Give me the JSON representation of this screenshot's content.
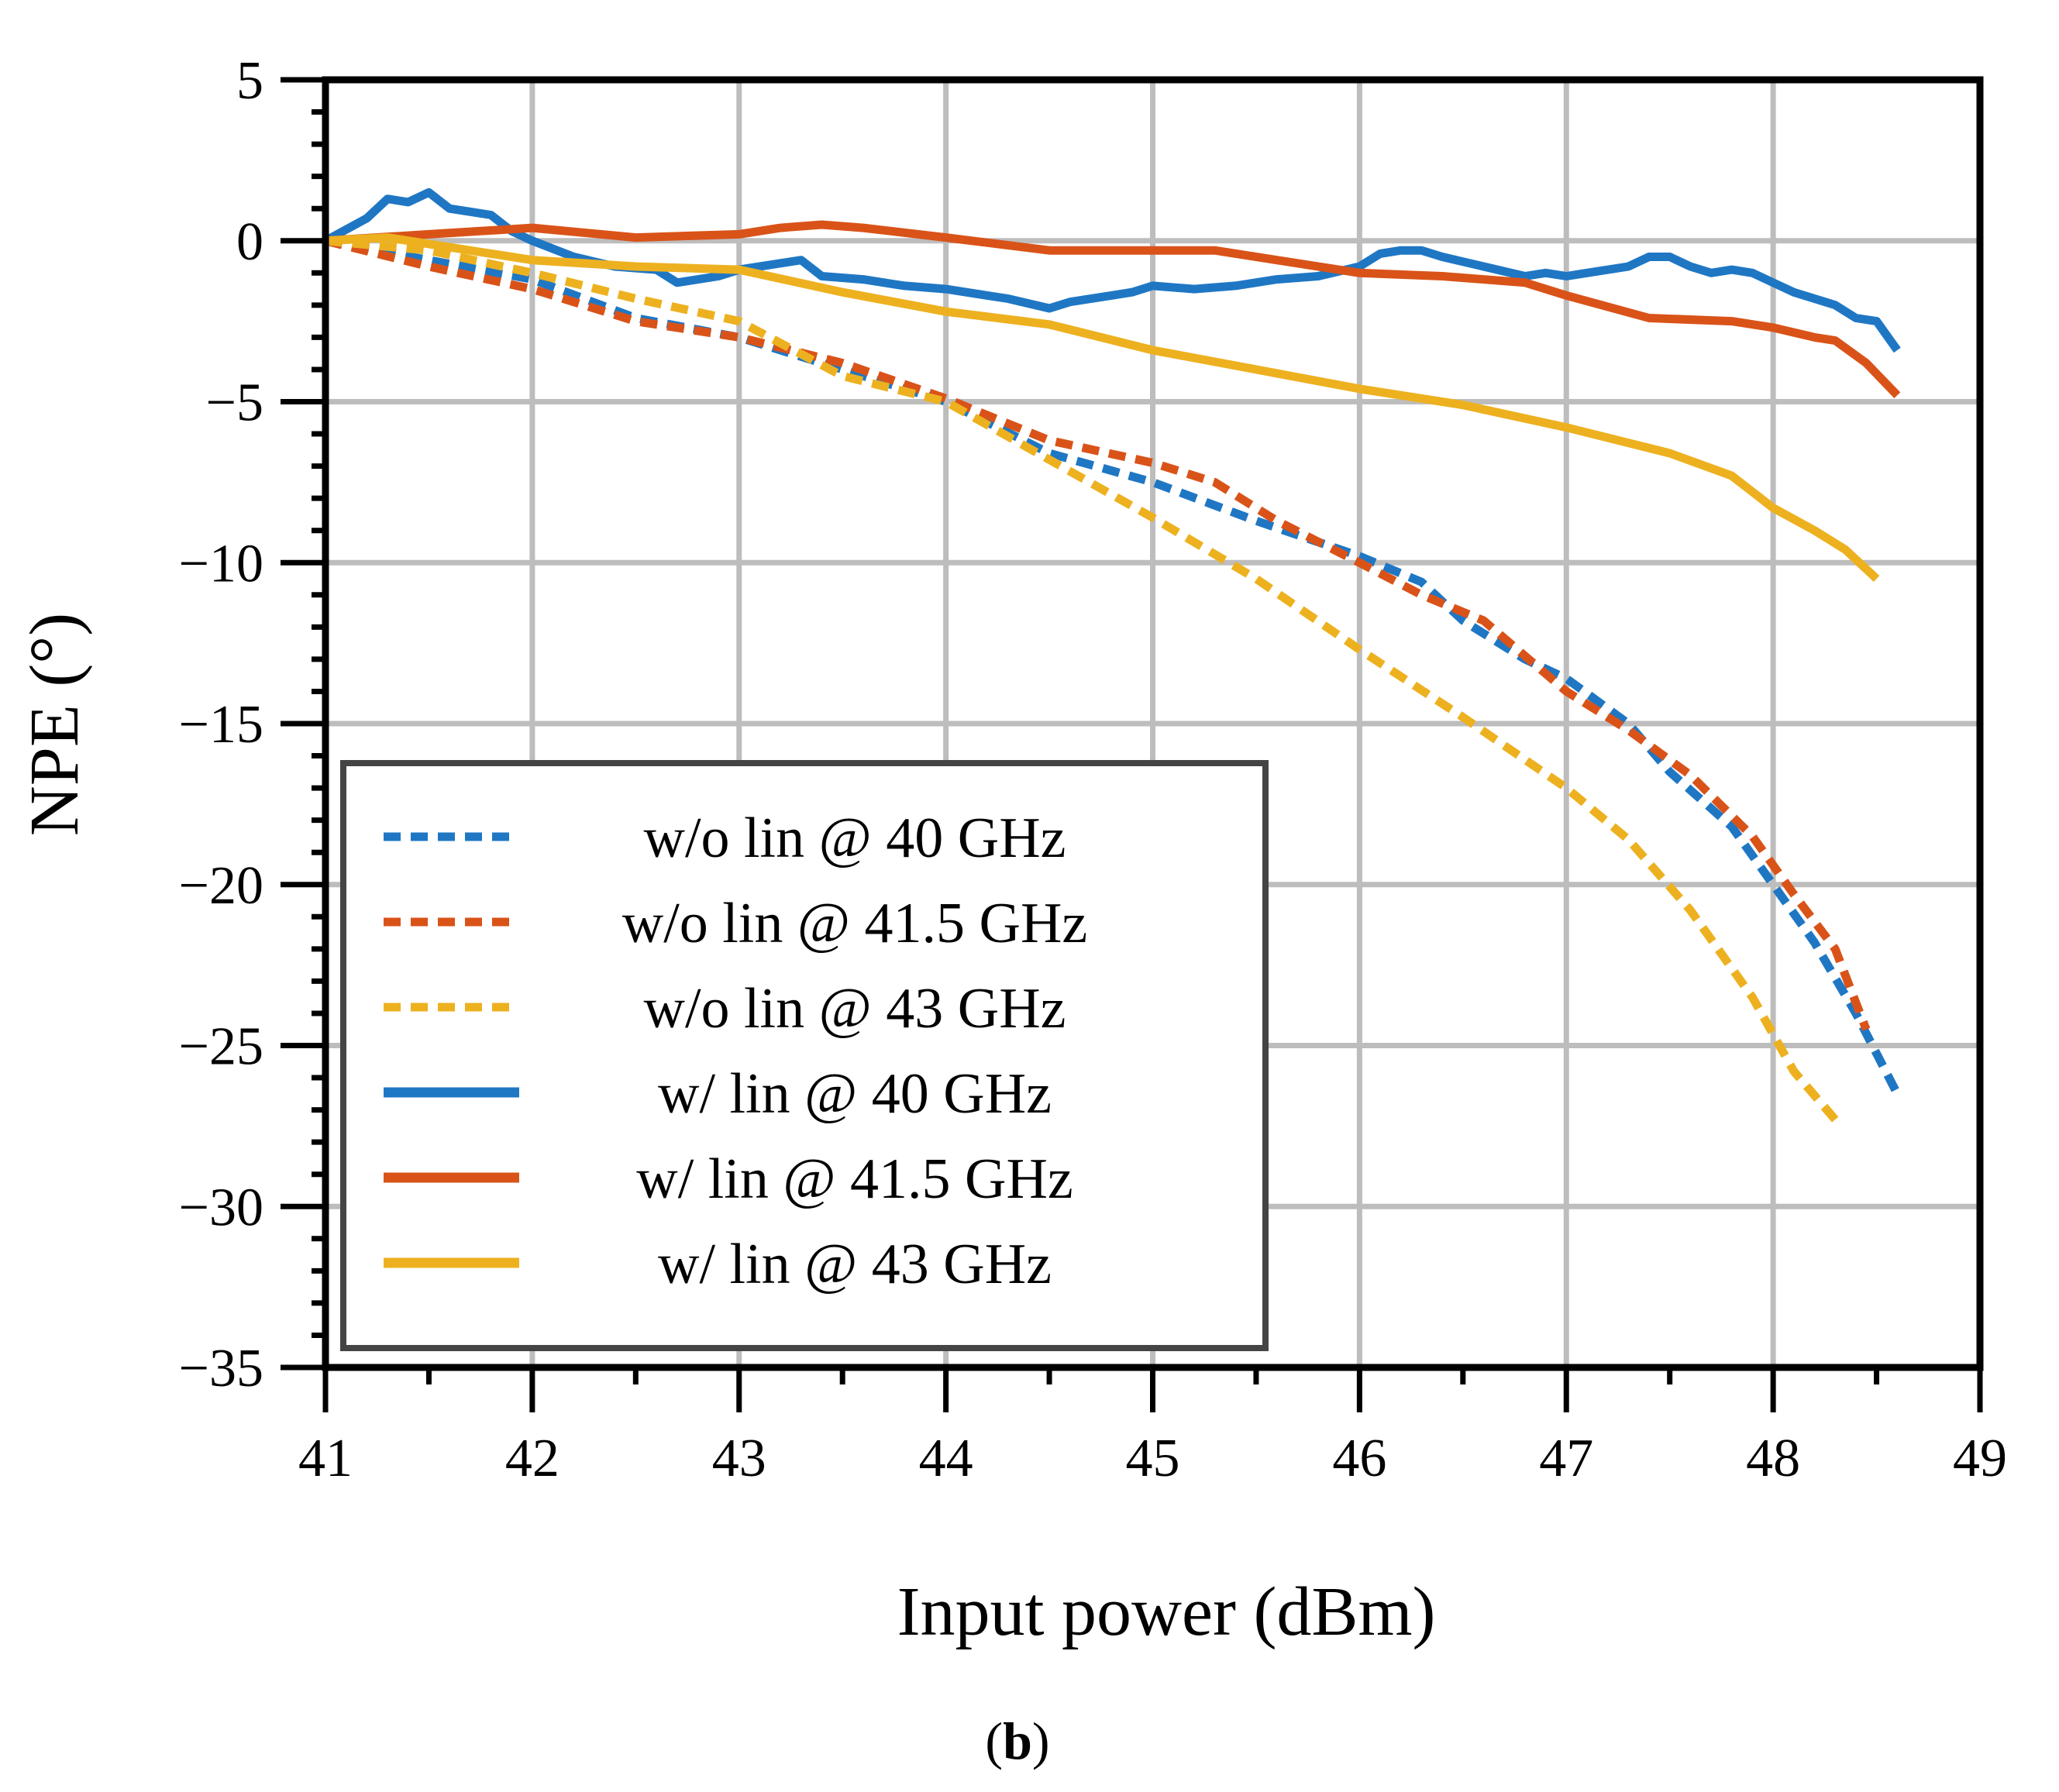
{
  "chart_data": {
    "type": "line",
    "xlabel": "Input power (dBm)",
    "ylabel": "NPE (°)",
    "xlim": [
      41,
      49
    ],
    "ylim": [
      -35,
      5
    ],
    "xticks": [
      41,
      42,
      43,
      44,
      45,
      46,
      47,
      48,
      49
    ],
    "yticks": [
      5,
      0,
      -5,
      -10,
      -15,
      -20,
      -25,
      -30,
      -35
    ],
    "ytick_labels": [
      "5",
      "0",
      "−5",
      "−10",
      "−15",
      "−20",
      "−25",
      "−30",
      "−35"
    ],
    "grid": true,
    "legend_position": "bottom-left",
    "panel_label": {
      "open": "(",
      "letter": "b",
      "close": ")"
    },
    "series": [
      {
        "name": "w/o lin @ 40 GHz",
        "color": "#1f77c4",
        "style": "dashed",
        "x": [
          41.0,
          41.5,
          42.0,
          42.5,
          43.0,
          43.5,
          44.0,
          44.5,
          45.0,
          45.5,
          46.0,
          46.3,
          46.5,
          46.8,
          47.0,
          47.3,
          47.5,
          47.8,
          48.0,
          48.2,
          48.4,
          48.6
        ],
        "values": [
          0.0,
          -0.6,
          -1.2,
          -2.4,
          -3.0,
          -4.0,
          -5.0,
          -6.6,
          -7.5,
          -8.7,
          -9.8,
          -10.6,
          -11.8,
          -13.0,
          -13.6,
          -15.0,
          -16.5,
          -18.2,
          -20.0,
          -21.8,
          -24.0,
          -26.5
        ]
      },
      {
        "name": "w/o lin @ 41.5 GHz",
        "color": "#d95319",
        "style": "dashed",
        "x": [
          41.0,
          41.5,
          42.0,
          42.5,
          43.0,
          43.5,
          44.0,
          44.5,
          45.0,
          45.3,
          45.6,
          46.0,
          46.3,
          46.6,
          47.0,
          47.3,
          47.6,
          47.9,
          48.1,
          48.3,
          48.45
        ],
        "values": [
          0.0,
          -0.8,
          -1.5,
          -2.5,
          -3.0,
          -3.8,
          -4.9,
          -6.2,
          -6.9,
          -7.5,
          -8.7,
          -10.0,
          -11.0,
          -11.8,
          -14.0,
          -15.2,
          -16.6,
          -18.5,
          -20.3,
          -22.0,
          -24.5
        ]
      },
      {
        "name": "w/o lin @ 43 GHz",
        "color": "#edb120",
        "style": "dashed",
        "x": [
          41.0,
          41.5,
          42.0,
          42.5,
          43.0,
          43.5,
          44.0,
          44.5,
          45.0,
          45.5,
          46.0,
          46.5,
          47.0,
          47.3,
          47.6,
          47.9,
          48.1,
          48.3
        ],
        "values": [
          0.0,
          -0.3,
          -1.0,
          -1.8,
          -2.5,
          -4.2,
          -5.0,
          -6.8,
          -8.6,
          -10.5,
          -12.7,
          -14.8,
          -17.0,
          -18.6,
          -20.8,
          -23.5,
          -25.8,
          -27.3
        ]
      },
      {
        "name": "w/ lin @ 40 GHz",
        "color": "#1f77c4",
        "style": "solid",
        "x": [
          41.0,
          41.2,
          41.3,
          41.4,
          41.5,
          41.6,
          41.8,
          41.9,
          42.0,
          42.2,
          42.4,
          42.6,
          42.7,
          42.9,
          43.0,
          43.2,
          43.3,
          43.4,
          43.6,
          43.8,
          44.0,
          44.2,
          44.3,
          44.5,
          44.6,
          44.8,
          44.9,
          45.0,
          45.2,
          45.4,
          45.6,
          45.8,
          46.0,
          46.1,
          46.2,
          46.3,
          46.4,
          46.6,
          46.8,
          46.9,
          47.0,
          47.1,
          47.3,
          47.4,
          47.5,
          47.6,
          47.7,
          47.8,
          47.9,
          48.0,
          48.1,
          48.2,
          48.3,
          48.4,
          48.5,
          48.6
        ],
        "values": [
          0.0,
          0.7,
          1.3,
          1.2,
          1.5,
          1.0,
          0.8,
          0.3,
          0.0,
          -0.5,
          -0.8,
          -0.9,
          -1.3,
          -1.1,
          -0.9,
          -0.7,
          -0.6,
          -1.1,
          -1.2,
          -1.4,
          -1.5,
          -1.7,
          -1.8,
          -2.1,
          -1.9,
          -1.7,
          -1.6,
          -1.4,
          -1.5,
          -1.4,
          -1.2,
          -1.1,
          -0.8,
          -0.4,
          -0.3,
          -0.3,
          -0.5,
          -0.8,
          -1.1,
          -1.0,
          -1.1,
          -1.0,
          -0.8,
          -0.5,
          -0.5,
          -0.8,
          -1.0,
          -0.9,
          -1.0,
          -1.3,
          -1.6,
          -1.8,
          -2.0,
          -2.4,
          -2.5,
          -3.4
        ]
      },
      {
        "name": "w/ lin @ 41.5 GHz",
        "color": "#d95319",
        "style": "solid",
        "x": [
          41.0,
          41.5,
          42.0,
          42.5,
          43.0,
          43.2,
          43.4,
          43.6,
          44.0,
          44.5,
          45.0,
          45.3,
          45.6,
          46.0,
          46.4,
          46.8,
          47.0,
          47.4,
          47.8,
          48.0,
          48.2,
          48.3,
          48.45,
          48.6
        ],
        "values": [
          0.0,
          0.2,
          0.4,
          0.1,
          0.2,
          0.4,
          0.5,
          0.4,
          0.1,
          -0.3,
          -0.3,
          -0.3,
          -0.6,
          -1.0,
          -1.1,
          -1.3,
          -1.7,
          -2.4,
          -2.5,
          -2.7,
          -3.0,
          -3.1,
          -3.8,
          -4.8
        ]
      },
      {
        "name": "w/ lin @ 43 GHz",
        "color": "#edb120",
        "style": "solid",
        "x": [
          41.0,
          41.3,
          41.5,
          42.0,
          42.5,
          43.0,
          43.5,
          44.0,
          44.5,
          45.0,
          45.5,
          46.0,
          46.5,
          47.0,
          47.5,
          47.8,
          48.0,
          48.2,
          48.35,
          48.5
        ],
        "values": [
          0.0,
          0.1,
          -0.1,
          -0.6,
          -0.8,
          -0.9,
          -1.6,
          -2.2,
          -2.6,
          -3.4,
          -4.0,
          -4.6,
          -5.1,
          -5.8,
          -6.6,
          -7.3,
          -8.3,
          -9.0,
          -9.6,
          -10.5
        ]
      }
    ]
  }
}
